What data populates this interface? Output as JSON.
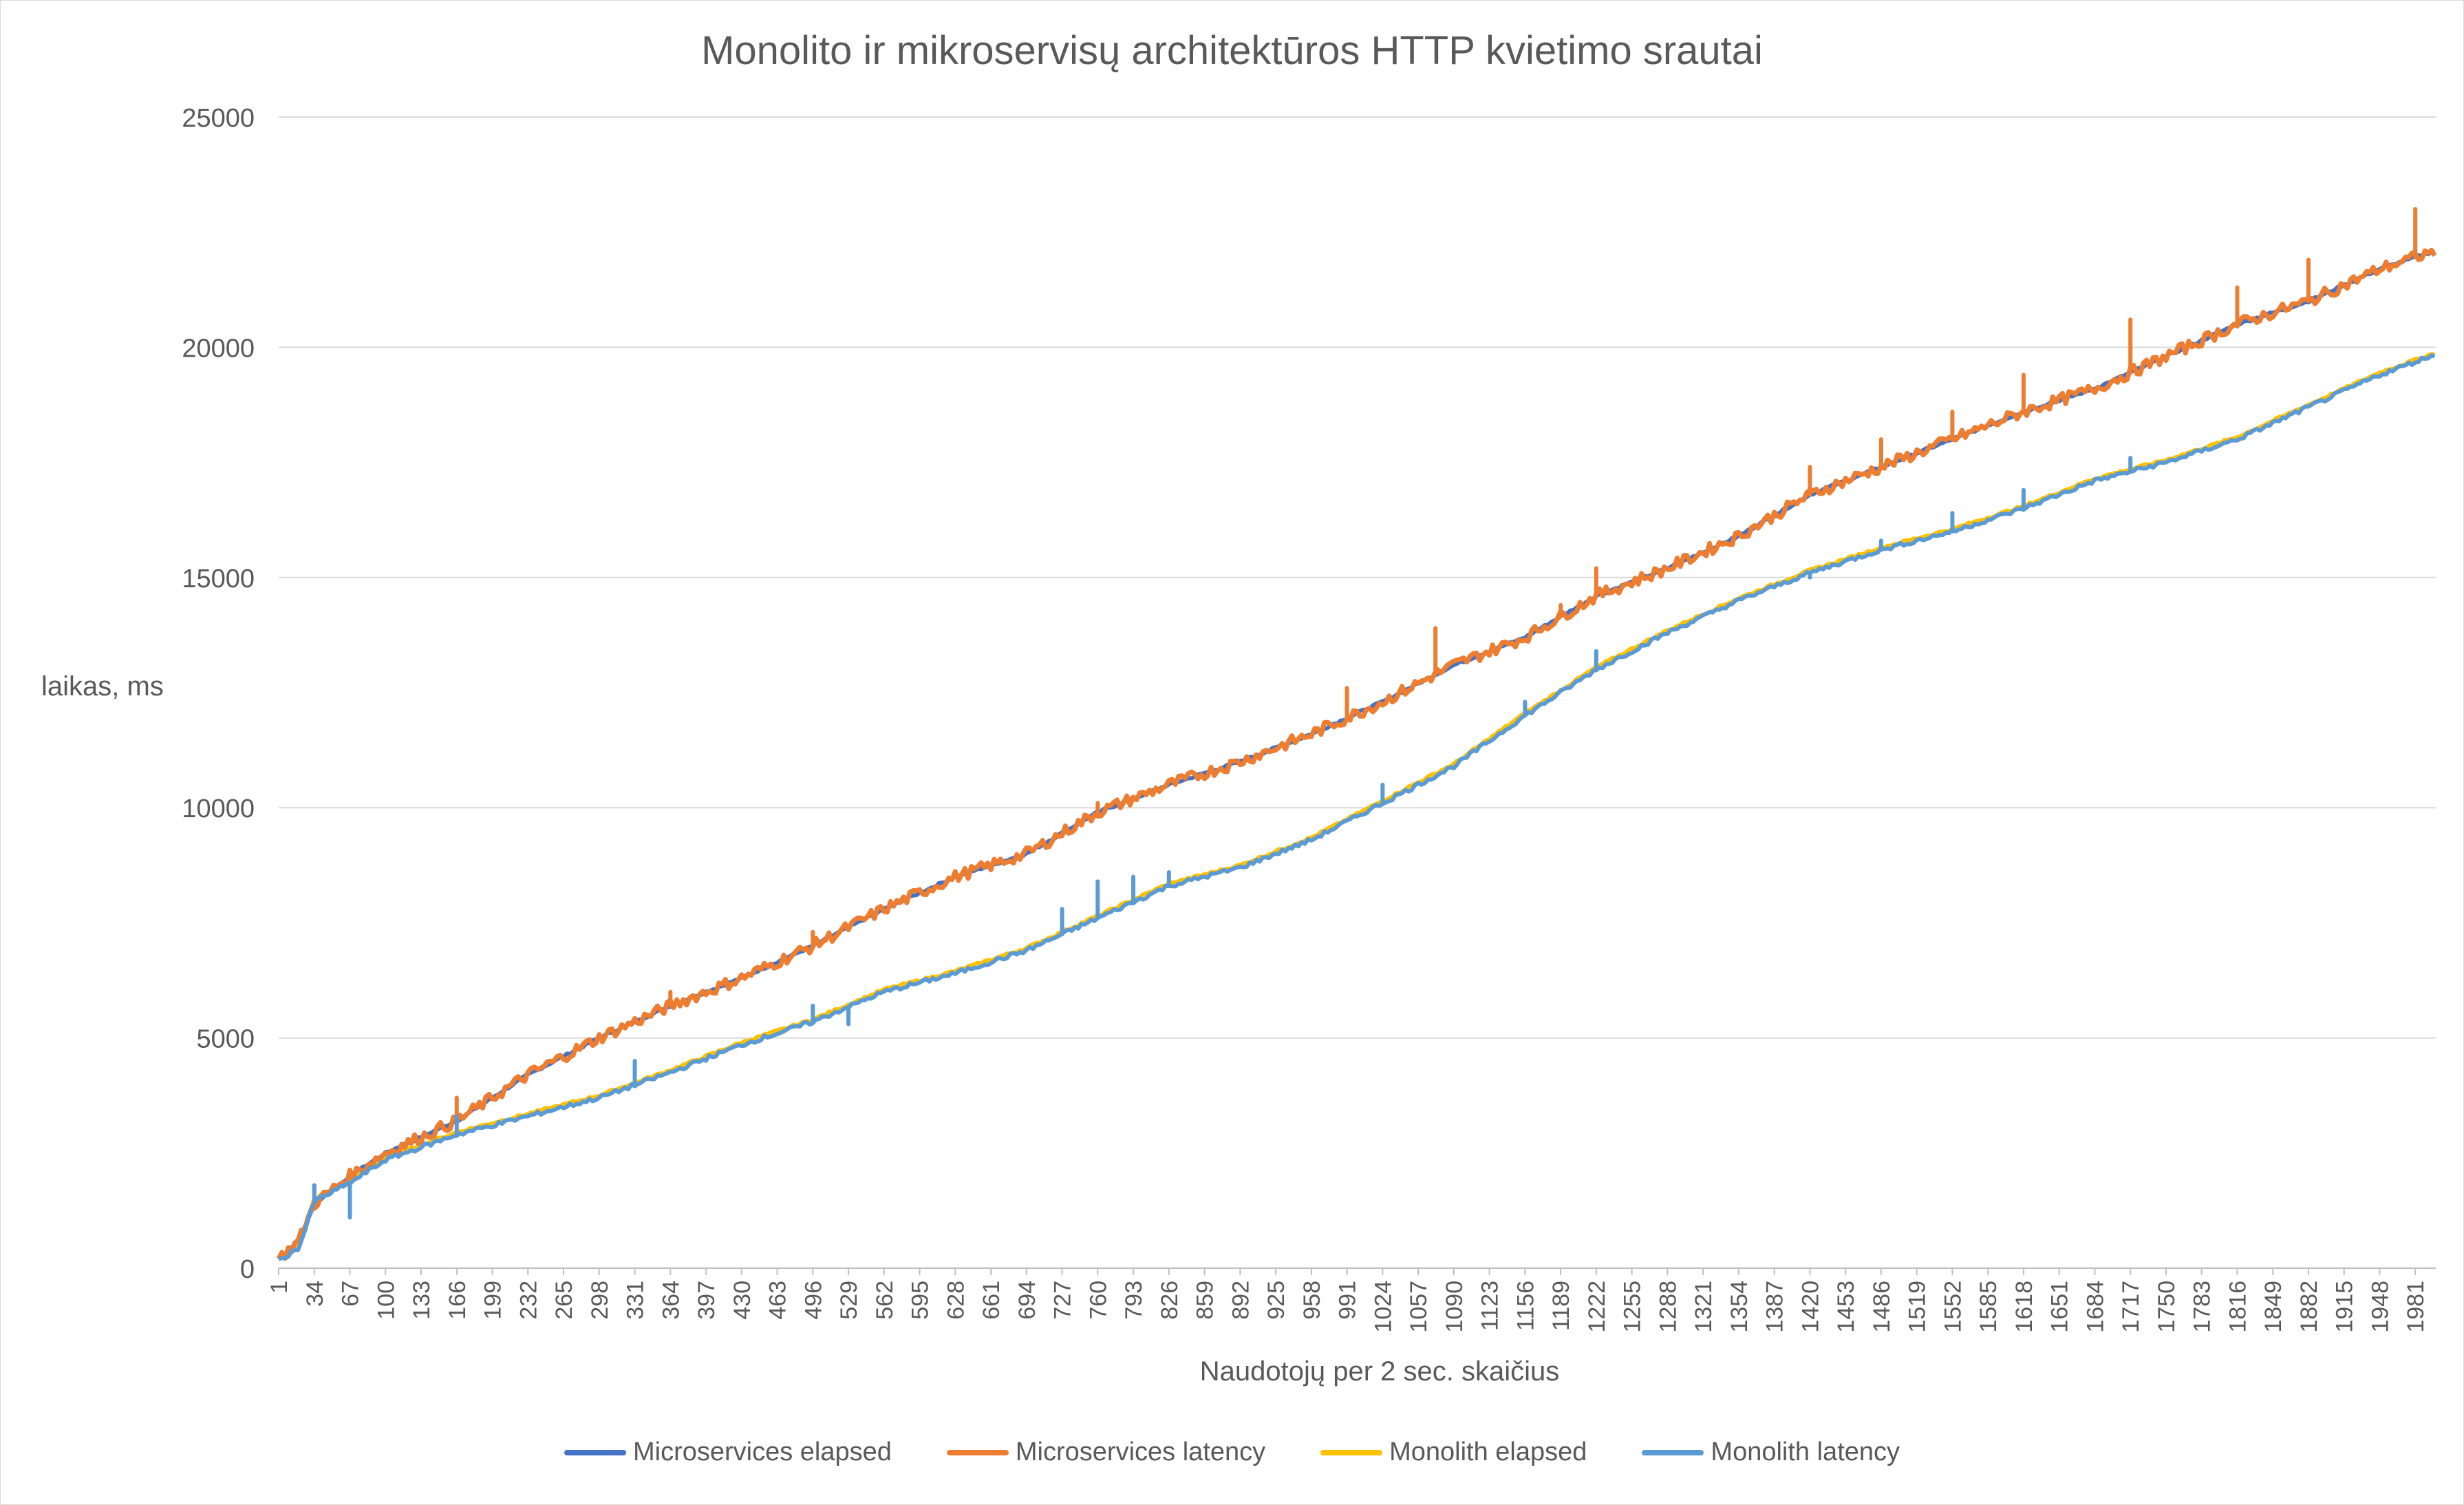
{
  "chart_data": {
    "type": "line",
    "title": "Monolito ir mikroservisų architektūros HTTP kvietimo srautai",
    "xlabel": "Naudotojų per 2 sec. skaičius",
    "ylabel": "laikas, ms",
    "ylim": [
      0,
      25000
    ],
    "yticks": [
      0,
      5000,
      10000,
      15000,
      20000,
      25000
    ],
    "xrange": [
      1,
      2000
    ],
    "xticks": [
      1,
      34,
      67,
      100,
      133,
      166,
      199,
      232,
      265,
      298,
      331,
      364,
      397,
      430,
      463,
      496,
      529,
      562,
      595,
      628,
      661,
      694,
      727,
      760,
      793,
      826,
      859,
      892,
      925,
      958,
      991,
      1024,
      1057,
      1090,
      1123,
      1156,
      1189,
      1222,
      1255,
      1288,
      1321,
      1354,
      1387,
      1420,
      1453,
      1486,
      1519,
      1552,
      1585,
      1618,
      1651,
      1684,
      1717,
      1750,
      1783,
      1816,
      1849,
      1882,
      1915,
      1948,
      1981
    ],
    "grid": true,
    "legend_position": "bottom",
    "series": [
      {
        "name": "Microservices elapsed",
        "color": "#4472c4",
        "points": [
          [
            1,
            200
          ],
          [
            20,
            600
          ],
          [
            34,
            1400
          ],
          [
            67,
            2000
          ],
          [
            100,
            2500
          ],
          [
            166,
            3200
          ],
          [
            232,
            4200
          ],
          [
            298,
            5000
          ],
          [
            364,
            5700
          ],
          [
            430,
            6300
          ],
          [
            496,
            7000
          ],
          [
            562,
            7800
          ],
          [
            628,
            8500
          ],
          [
            694,
            9000
          ],
          [
            760,
            9900
          ],
          [
            826,
            10500
          ],
          [
            892,
            11000
          ],
          [
            958,
            11600
          ],
          [
            1024,
            12300
          ],
          [
            1090,
            13100
          ],
          [
            1156,
            13700
          ],
          [
            1222,
            14600
          ],
          [
            1288,
            15200
          ],
          [
            1354,
            15900
          ],
          [
            1420,
            16800
          ],
          [
            1486,
            17400
          ],
          [
            1552,
            18000
          ],
          [
            1618,
            18600
          ],
          [
            1684,
            19100
          ],
          [
            1750,
            19800
          ],
          [
            1816,
            20500
          ],
          [
            1882,
            21000
          ],
          [
            1948,
            21700
          ],
          [
            2000,
            22100
          ]
        ]
      },
      {
        "name": "Microservices latency",
        "color": "#ed7d31",
        "points": [
          [
            1,
            200
          ],
          [
            20,
            600
          ],
          [
            34,
            1400
          ],
          [
            67,
            2000
          ],
          [
            100,
            2500
          ],
          [
            166,
            3200
          ],
          [
            232,
            4200
          ],
          [
            298,
            5000
          ],
          [
            364,
            5700
          ],
          [
            430,
            6300
          ],
          [
            496,
            7000
          ],
          [
            562,
            7800
          ],
          [
            628,
            8500
          ],
          [
            694,
            9000
          ],
          [
            760,
            9900
          ],
          [
            826,
            10500
          ],
          [
            892,
            11000
          ],
          [
            958,
            11600
          ],
          [
            1024,
            12300
          ],
          [
            1090,
            13100
          ],
          [
            1156,
            13700
          ],
          [
            1222,
            14600
          ],
          [
            1288,
            15200
          ],
          [
            1354,
            15900
          ],
          [
            1420,
            16800
          ],
          [
            1486,
            17400
          ],
          [
            1552,
            18000
          ],
          [
            1618,
            18600
          ],
          [
            1684,
            19100
          ],
          [
            1750,
            19800
          ],
          [
            1816,
            20500
          ],
          [
            1882,
            21000
          ],
          [
            1948,
            21700
          ],
          [
            2000,
            22100
          ]
        ],
        "spikes": [
          [
            34,
            1800
          ],
          [
            67,
            2100
          ],
          [
            166,
            3700
          ],
          [
            364,
            6000
          ],
          [
            496,
            7300
          ],
          [
            760,
            10100
          ],
          [
            991,
            12600
          ],
          [
            1073,
            13900
          ],
          [
            1189,
            14400
          ],
          [
            1222,
            15200
          ],
          [
            1420,
            17400
          ],
          [
            1486,
            18000
          ],
          [
            1552,
            18600
          ],
          [
            1618,
            19400
          ],
          [
            1717,
            20600
          ],
          [
            1816,
            21300
          ],
          [
            1882,
            21900
          ],
          [
            1981,
            23000
          ]
        ]
      },
      {
        "name": "Monolith elapsed",
        "color": "#ffc000",
        "points": [
          [
            1,
            200
          ],
          [
            20,
            500
          ],
          [
            34,
            1500
          ],
          [
            67,
            1900
          ],
          [
            100,
            2400
          ],
          [
            166,
            2950
          ],
          [
            232,
            3350
          ],
          [
            298,
            3750
          ],
          [
            364,
            4300
          ],
          [
            430,
            4900
          ],
          [
            496,
            5400
          ],
          [
            562,
            6050
          ],
          [
            628,
            6450
          ],
          [
            694,
            6950
          ],
          [
            760,
            7650
          ],
          [
            826,
            8350
          ],
          [
            892,
            8750
          ],
          [
            958,
            9350
          ],
          [
            1024,
            10150
          ],
          [
            1090,
            10950
          ],
          [
            1156,
            12050
          ],
          [
            1222,
            13050
          ],
          [
            1288,
            13850
          ],
          [
            1354,
            14550
          ],
          [
            1420,
            15150
          ],
          [
            1486,
            15650
          ],
          [
            1552,
            16050
          ],
          [
            1618,
            16550
          ],
          [
            1684,
            17150
          ],
          [
            1750,
            17550
          ],
          [
            1816,
            18050
          ],
          [
            1882,
            18750
          ],
          [
            1948,
            19450
          ],
          [
            2000,
            19880
          ]
        ]
      },
      {
        "name": "Monolith latency",
        "color": "#5b9bd5",
        "points": [
          [
            1,
            150
          ],
          [
            20,
            450
          ],
          [
            34,
            1450
          ],
          [
            67,
            1850
          ],
          [
            100,
            2350
          ],
          [
            166,
            2900
          ],
          [
            232,
            3300
          ],
          [
            298,
            3700
          ],
          [
            364,
            4250
          ],
          [
            430,
            4850
          ],
          [
            496,
            5350
          ],
          [
            562,
            6000
          ],
          [
            628,
            6400
          ],
          [
            694,
            6900
          ],
          [
            760,
            7600
          ],
          [
            826,
            8300
          ],
          [
            892,
            8700
          ],
          [
            958,
            9300
          ],
          [
            1024,
            10100
          ],
          [
            1090,
            10900
          ],
          [
            1156,
            12000
          ],
          [
            1222,
            13000
          ],
          [
            1288,
            13800
          ],
          [
            1354,
            14500
          ],
          [
            1420,
            15100
          ],
          [
            1486,
            15600
          ],
          [
            1552,
            16000
          ],
          [
            1618,
            16500
          ],
          [
            1684,
            17100
          ],
          [
            1750,
            17500
          ],
          [
            1816,
            18000
          ],
          [
            1882,
            18700
          ],
          [
            1948,
            19400
          ],
          [
            2000,
            19850
          ]
        ],
        "spikes": [
          [
            34,
            1800
          ],
          [
            67,
            1100
          ],
          [
            166,
            3300
          ],
          [
            331,
            4500
          ],
          [
            496,
            5700
          ],
          [
            529,
            5300
          ],
          [
            727,
            7800
          ],
          [
            760,
            8400
          ],
          [
            793,
            8500
          ],
          [
            826,
            8600
          ],
          [
            1024,
            10500
          ],
          [
            1156,
            12300
          ],
          [
            1222,
            13400
          ],
          [
            1420,
            15000
          ],
          [
            1486,
            15800
          ],
          [
            1552,
            16400
          ],
          [
            1618,
            16900
          ],
          [
            1717,
            17600
          ]
        ]
      }
    ]
  }
}
